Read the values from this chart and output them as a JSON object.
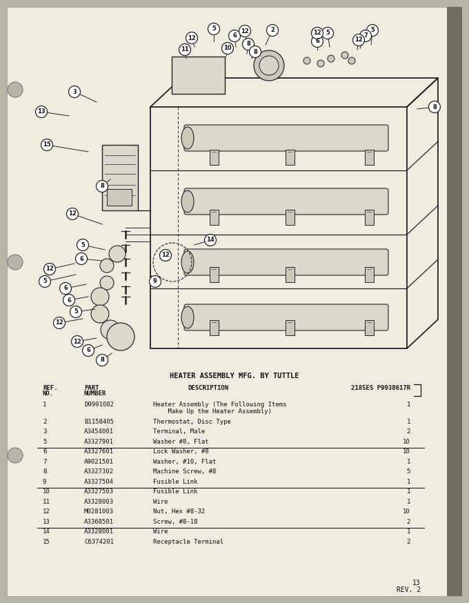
{
  "title": "HEATER ASSEMBLY MFG. BY TUTTLE",
  "page_num": "13",
  "rev": "REV. 2",
  "bom_header": "2185ES P9938617R",
  "parts": [
    {
      "ref": "1",
      "part": "D9991002",
      "desc1": "Heater Assembly (The Following Items",
      "desc2": "    Make Up the Heater Assembly)",
      "qty": "1",
      "overline": false,
      "underline": false
    },
    {
      "ref": "2",
      "part": "B1158405",
      "desc1": "Thermostat, Disc Type",
      "desc2": "",
      "qty": "1",
      "overline": false,
      "underline": false
    },
    {
      "ref": "3",
      "part": "A3454001",
      "desc1": "Terminal, Male",
      "desc2": "",
      "qty": "2",
      "overline": false,
      "underline": false
    },
    {
      "ref": "5",
      "part": "A3327901",
      "desc1": "Washer #8, Flat",
      "desc2": "",
      "qty": "10",
      "overline": false,
      "underline": true
    },
    {
      "ref": "6",
      "part": "A3327601",
      "desc1": "Lock Washer, #8",
      "desc2": "",
      "qty": "10",
      "overline": true,
      "underline": false
    },
    {
      "ref": "7",
      "part": "A9021501",
      "desc1": "Washer, #10, Flat",
      "desc2": "",
      "qty": "1",
      "overline": false,
      "underline": false
    },
    {
      "ref": "8",
      "part": "A3327302",
      "desc1": "Machine Screw, #8",
      "desc2": "",
      "qty": "5",
      "overline": false,
      "underline": false
    },
    {
      "ref": "9",
      "part": "A3327504",
      "desc1": "Fusible Link",
      "desc2": "",
      "qty": "1",
      "overline": false,
      "underline": true
    },
    {
      "ref": "10",
      "part": "A3327503",
      "desc1": "Fusible Link",
      "desc2": "",
      "qty": "1",
      "overline": true,
      "underline": false
    },
    {
      "ref": "11",
      "part": "A3328003",
      "desc1": "Wire",
      "desc2": "",
      "qty": "1",
      "overline": false,
      "underline": false
    },
    {
      "ref": "12",
      "part": "M0281003",
      "desc1": "Nut, Hex #8-32",
      "desc2": "",
      "qty": "10",
      "overline": false,
      "underline": false
    },
    {
      "ref": "13",
      "part": "A3368501",
      "desc1": "Screw, #8-18",
      "desc2": "",
      "qty": "2",
      "overline": false,
      "underline": true
    },
    {
      "ref": "14",
      "part": "A3328001",
      "desc1": "Wire",
      "desc2": "",
      "qty": "1",
      "overline": true,
      "underline": false
    },
    {
      "ref": "15",
      "part": "C6374201",
      "desc1": "Receptacle Terminal",
      "desc2": "",
      "qty": "2",
      "overline": false,
      "underline": false
    }
  ],
  "bg_color": "#b8b4a8",
  "paper_color": "#f0ece0",
  "text_color": "#111111",
  "line_color": "#222222"
}
